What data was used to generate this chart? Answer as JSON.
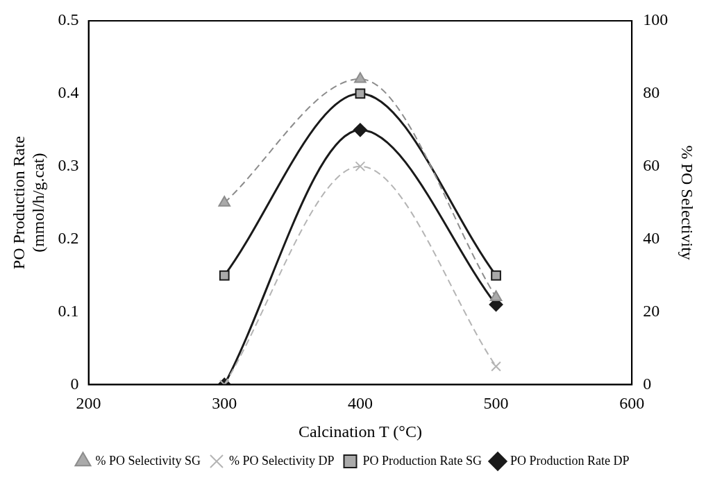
{
  "chart_data": {
    "type": "line",
    "xlabel": "Calcination T (°C)",
    "ylabel": "PO Production Rate\n(mmol/h/g.cat)",
    "y2label": "% PO Selectivity",
    "x": [
      300,
      400,
      500
    ],
    "xlim": [
      200,
      600
    ],
    "xticks": [
      200,
      300,
      400,
      500,
      600
    ],
    "ylim": [
      0,
      0.5
    ],
    "yticks": [
      0,
      0.1,
      0.2,
      0.3,
      0.4,
      0.5
    ],
    "y2lim": [
      0,
      100
    ],
    "y2ticks": [
      0,
      20,
      40,
      60,
      80,
      100
    ],
    "grid": false,
    "legend": "bottom",
    "series": [
      {
        "name": "% PO Selectivity SG",
        "color": "#8c8c8c",
        "values": [
          50,
          84,
          24
        ],
        "axis": "y2",
        "marker": "triangle",
        "line_style": "dashed"
      },
      {
        "name": "% PO Selectivity DP",
        "color": "#b4b4b4",
        "values": [
          0,
          60,
          5
        ],
        "axis": "y2",
        "marker": "cross",
        "line_style": "dashed"
      },
      {
        "name": "PO Production Rate SG",
        "color": "#1a1a1a",
        "values": [
          0.15,
          0.4,
          0.15
        ],
        "marker": "square",
        "line_style": "solid"
      },
      {
        "name": "PO Production Rate DP",
        "color": "#1a1a1a",
        "values": [
          0,
          0.35,
          0.11
        ],
        "marker": "diamond",
        "line_style": "solid"
      }
    ]
  }
}
